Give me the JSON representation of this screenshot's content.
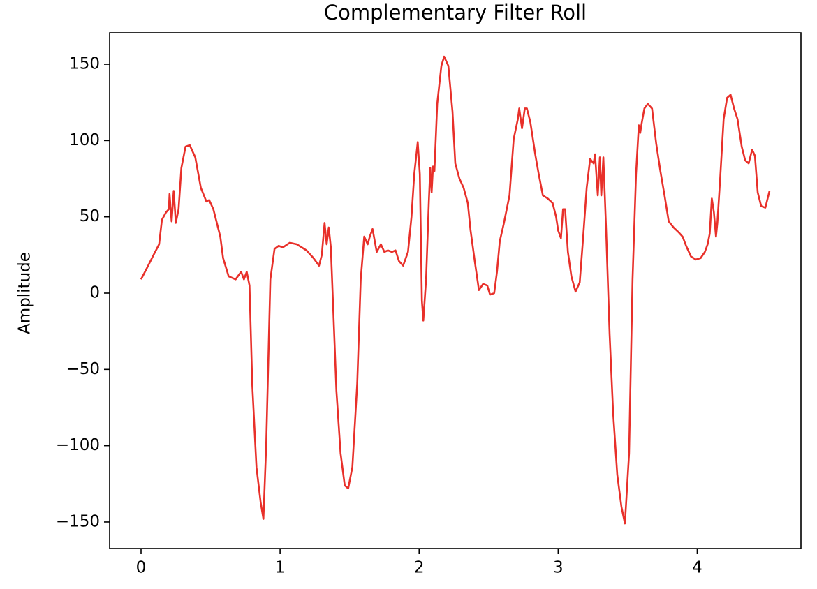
{
  "chart_data": {
    "type": "line",
    "title": "Complementary Filter Roll",
    "y_label": "Amplitude",
    "color": "#e8302a",
    "x": [
      0,
      0.04,
      0.09,
      0.13,
      0.15,
      0.18,
      0.2,
      0.205,
      0.22,
      0.235,
      0.25,
      0.27,
      0.29,
      0.32,
      0.35,
      0.39,
      0.43,
      0.47,
      0.49,
      0.52,
      0.57,
      0.59,
      0.63,
      0.68,
      0.72,
      0.74,
      0.76,
      0.78,
      0.8,
      0.83,
      0.86,
      0.88,
      0.9,
      0.93,
      0.96,
      0.99,
      1.02,
      1.07,
      1.12,
      1.19,
      1.24,
      1.28,
      1.3,
      1.32,
      1.335,
      1.35,
      1.365,
      1.38,
      1.405,
      1.435,
      1.465,
      1.49,
      1.52,
      1.555,
      1.58,
      1.605,
      1.63,
      1.645,
      1.665,
      1.695,
      1.725,
      1.75,
      1.775,
      1.805,
      1.83,
      1.855,
      1.885,
      1.92,
      1.945,
      1.965,
      1.99,
      2.005,
      2.02,
      2.03,
      2.05,
      2.07,
      2.08,
      2.09,
      2.1,
      2.11,
      2.13,
      2.16,
      2.18,
      2.21,
      2.24,
      2.26,
      2.29,
      2.32,
      2.35,
      2.37,
      2.4,
      2.43,
      2.46,
      2.49,
      2.51,
      2.54,
      2.56,
      2.58,
      2.61,
      2.65,
      2.68,
      2.71,
      2.72,
      2.74,
      2.76,
      2.775,
      2.8,
      2.835,
      2.86,
      2.89,
      2.925,
      2.96,
      2.985,
      3.0,
      3.02,
      3.035,
      3.05,
      3.07,
      3.095,
      3.125,
      3.155,
      3.18,
      3.205,
      3.23,
      3.255,
      3.265,
      3.285,
      3.3,
      3.31,
      3.325,
      3.345,
      3.37,
      3.395,
      3.425,
      3.455,
      3.48,
      3.51,
      3.535,
      3.56,
      3.58,
      3.59,
      3.6,
      3.62,
      3.645,
      3.675,
      3.705,
      3.735,
      3.765,
      3.795,
      3.83,
      3.865,
      3.895,
      3.92,
      3.955,
      3.99,
      4.025,
      4.055,
      4.075,
      4.09,
      4.105,
      4.12,
      4.135,
      4.145,
      4.165,
      4.19,
      4.215,
      4.24,
      4.265,
      4.29,
      4.32,
      4.345,
      4.37,
      4.395,
      4.415,
      4.435,
      4.46,
      4.49,
      4.52
    ],
    "values": [
      9,
      16,
      25,
      32,
      48,
      53,
      55,
      65,
      47,
      67,
      46,
      55,
      82,
      96,
      97,
      89,
      69,
      60,
      61,
      55,
      37,
      23,
      11,
      9,
      14,
      9,
      14,
      5,
      -60,
      -114,
      -137,
      -148,
      -100,
      9,
      29,
      31,
      30,
      33,
      32,
      28,
      23,
      18,
      25,
      46,
      32,
      43,
      30,
      -5,
      -64,
      -105,
      -126,
      -128,
      -114,
      -59,
      9,
      37,
      32,
      37,
      42,
      27,
      32,
      27,
      28,
      27,
      28,
      21,
      18,
      27,
      50,
      78,
      99,
      78,
      -5,
      -18,
      9,
      60,
      82,
      66,
      83,
      80,
      124,
      149,
      155,
      149,
      119,
      85,
      75,
      69,
      59,
      41,
      21,
      2,
      6,
      5,
      -1,
      0,
      14,
      34,
      46,
      64,
      101,
      114,
      121,
      108,
      121,
      121,
      112,
      91,
      78,
      64,
      62,
      59,
      50,
      41,
      36,
      55,
      55,
      27,
      11,
      1,
      7,
      37,
      69,
      88,
      85,
      91,
      64,
      89,
      64,
      89,
      41,
      -27,
      -78,
      -119,
      -140,
      -151,
      -105,
      9,
      78,
      110,
      105,
      111,
      121,
      124,
      121,
      98,
      80,
      64,
      47,
      43,
      40,
      37,
      31,
      24,
      22,
      23,
      27,
      32,
      39,
      62,
      53,
      37,
      46,
      75,
      114,
      128,
      130,
      121,
      114,
      96,
      87,
      85,
      94,
      90,
      66,
      57,
      56,
      67
    ],
    "xlim": [
      -0.226,
      4.746
    ],
    "ylim": [
      -167.4,
      170.6
    ],
    "xticks": [
      0,
      1,
      2,
      3,
      4
    ],
    "yticks": [
      {
        "value": -150,
        "label": "−150"
      },
      {
        "value": -100,
        "label": "−100"
      },
      {
        "value": -50,
        "label": "−50"
      },
      0,
      50,
      100,
      150
    ]
  }
}
